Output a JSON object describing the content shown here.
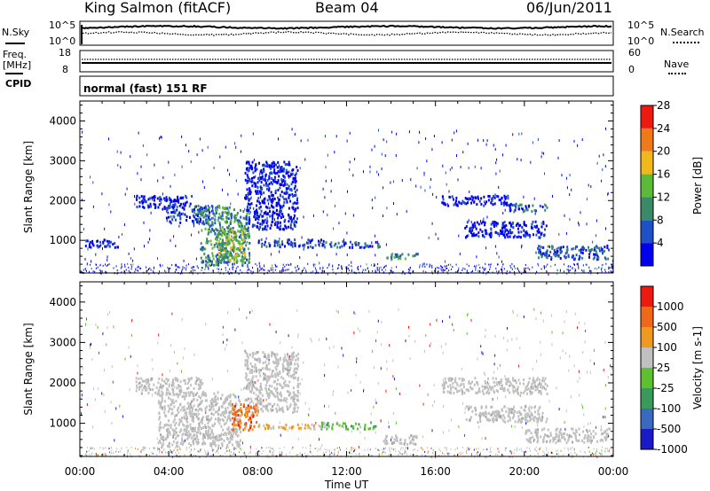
{
  "header": {
    "station": "King Salmon (fitACF)",
    "beam": "Beam 04",
    "date": "06/Jun/2011"
  },
  "summary_panels": {
    "nsky_label": "N.Sky",
    "nsky_ticks": [
      "10^5",
      "10^0"
    ],
    "nsearch_label": "N.Search",
    "nsearch_ticks": [
      "10^5",
      "10^0"
    ],
    "freq_label_1": "Freq.",
    "freq_label_2": "[MHz]",
    "freq_ticks": [
      "18",
      "8"
    ],
    "nave_label": "Nave",
    "nave_ticks": [
      "60",
      "0"
    ],
    "cpid_label": "CPID",
    "cpid_text": "normal (fast) 151 RF"
  },
  "chart_data": [
    {
      "type": "heatmap",
      "title": "Power",
      "ylabel": "Slant Range [km]",
      "xlabel": "Time UT",
      "ylim": [
        180,
        4500
      ],
      "yticks": [
        1000,
        2000,
        3000,
        4000
      ],
      "xlim": [
        0,
        24
      ],
      "xtick_labels": [
        "00:00",
        "04:00",
        "08:00",
        "12:00",
        "16:00",
        "20:00",
        "00:00"
      ],
      "colorbar": {
        "label": "Power [dB]",
        "tick_labels": [
          "4",
          "8",
          "12",
          "16",
          "20",
          "24",
          "28"
        ],
        "colors": [
          "#0000ee",
          "#1e50c8",
          "#3a8a6a",
          "#5cba3a",
          "#f0b818",
          "#f07a18",
          "#ee1a10"
        ]
      },
      "echo_regions": [
        {
          "t0": 0.2,
          "t1": 1.8,
          "r0": 850,
          "r1": 1050,
          "level": 1
        },
        {
          "t0": 2.5,
          "t1": 5.0,
          "r0": 1800,
          "r1": 2150,
          "level": 1
        },
        {
          "t0": 3.8,
          "t1": 5.8,
          "r0": 1450,
          "r1": 1900,
          "level": 2
        },
        {
          "t0": 5.4,
          "t1": 7.6,
          "r0": 400,
          "r1": 1900,
          "level": 3
        },
        {
          "t0": 6.2,
          "t1": 7.4,
          "r0": 500,
          "r1": 1300,
          "level": 4
        },
        {
          "t0": 7.4,
          "t1": 9.8,
          "r0": 1300,
          "r1": 3000,
          "level": 1
        },
        {
          "t0": 8.0,
          "t1": 11.0,
          "r0": 850,
          "r1": 1050,
          "level": 2
        },
        {
          "t0": 11.0,
          "t1": 13.5,
          "r0": 850,
          "r1": 1000,
          "level": 2
        },
        {
          "t0": 13.7,
          "t1": 15.2,
          "r0": 550,
          "r1": 700,
          "level": 3
        },
        {
          "t0": 16.2,
          "t1": 19.3,
          "r0": 1900,
          "r1": 2150,
          "level": 1
        },
        {
          "t0": 19.3,
          "t1": 21.0,
          "r0": 1750,
          "r1": 1950,
          "level": 2
        },
        {
          "t0": 17.3,
          "t1": 21.0,
          "r0": 1100,
          "r1": 1500,
          "level": 1
        },
        {
          "t0": 20.5,
          "t1": 23.8,
          "r0": 550,
          "r1": 900,
          "level": 2
        }
      ]
    },
    {
      "type": "heatmap",
      "title": "Velocity",
      "ylabel": "Slant Range [km]",
      "xlabel": "Time UT",
      "ylim": [
        180,
        4500
      ],
      "yticks": [
        1000,
        2000,
        3000,
        4000
      ],
      "xlim": [
        0,
        24
      ],
      "xtick_labels": [
        "00:00",
        "04:00",
        "08:00",
        "12:00",
        "16:00",
        "20:00",
        "00:00"
      ],
      "colorbar": {
        "label": "Velocity [m s-1]",
        "tick_labels": [
          "1000",
          "500",
          "100",
          "25",
          "-25",
          "-100",
          "-500",
          "-1000"
        ],
        "colors": [
          "#1a1ac8",
          "#3a6ac0",
          "#3a9a5a",
          "#5cc030",
          "#c0c0c0",
          "#f09820",
          "#f06818",
          "#ee1a10"
        ]
      },
      "echo_regions": [
        {
          "t0": 2.5,
          "t1": 5.5,
          "r0": 1750,
          "r1": 2150,
          "kind": "ground"
        },
        {
          "t0": 3.5,
          "t1": 7.2,
          "r0": 450,
          "r1": 1800,
          "kind": "ground"
        },
        {
          "t0": 7.4,
          "t1": 9.8,
          "r0": 1300,
          "r1": 2800,
          "kind": "ground"
        },
        {
          "t0": 6.8,
          "t1": 8.0,
          "r0": 850,
          "r1": 1500,
          "kind": "flow_away"
        },
        {
          "t0": 8.0,
          "t1": 10.8,
          "r0": 880,
          "r1": 1000,
          "kind": "flow_away_weak"
        },
        {
          "t0": 10.8,
          "t1": 13.3,
          "r0": 880,
          "r1": 1050,
          "kind": "flow_toward"
        },
        {
          "t0": 13.6,
          "t1": 15.2,
          "r0": 500,
          "r1": 750,
          "kind": "ground"
        },
        {
          "t0": 16.2,
          "t1": 21.0,
          "r0": 1750,
          "r1": 2150,
          "kind": "ground"
        },
        {
          "t0": 17.3,
          "t1": 21.0,
          "r0": 1050,
          "r1": 1450,
          "kind": "ground"
        },
        {
          "t0": 20.0,
          "t1": 23.8,
          "r0": 550,
          "r1": 900,
          "kind": "ground"
        }
      ]
    }
  ]
}
